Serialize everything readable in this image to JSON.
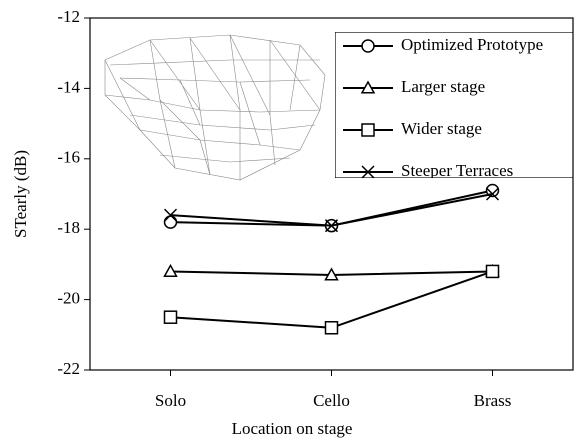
{
  "chart_data": {
    "type": "line",
    "x_label": "Location on stage",
    "y_label": "STearly (dB)",
    "categories": [
      "Solo",
      "Cello",
      "Brass"
    ],
    "series": [
      {
        "name": "Optimized Prototype",
        "color": "#000000",
        "marker": "circle",
        "values": [
          -17.8,
          -17.9,
          -16.9
        ]
      },
      {
        "name": "Larger stage",
        "color": "#000000",
        "marker": "triangle",
        "values": [
          -19.2,
          -19.3,
          -19.2
        ]
      },
      {
        "name": "Wider stage",
        "color": "#000000",
        "marker": "square",
        "values": [
          -20.5,
          -20.8,
          -19.2
        ]
      },
      {
        "name": "Steeper Terraces",
        "color": "#000000",
        "marker": "x",
        "values": [
          -17.6,
          -17.9,
          -17.0
        ]
      }
    ],
    "ylim": [
      -22,
      -12
    ],
    "yticks": [
      -22,
      -20,
      -18,
      -16,
      -14,
      -12
    ],
    "grid": false,
    "legend": "upper right"
  }
}
